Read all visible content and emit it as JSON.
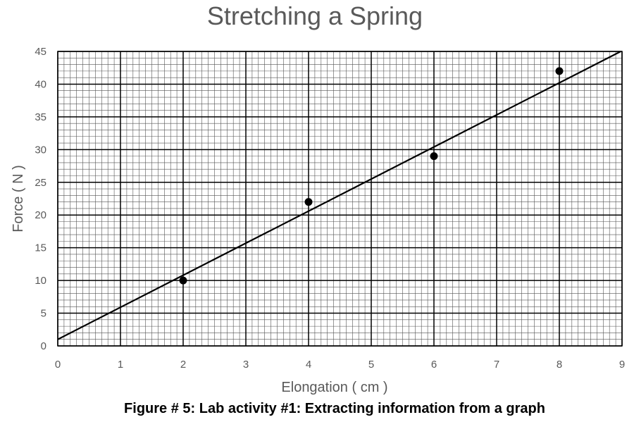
{
  "chart_data": {
    "type": "scatter",
    "title": "Stretching a Spring",
    "xlabel": "Elongation ( cm )",
    "ylabel": "Force ( N )",
    "xlim": [
      0,
      9
    ],
    "ylim": [
      0,
      45
    ],
    "x_ticks": [
      0,
      1,
      2,
      3,
      4,
      5,
      6,
      7,
      8,
      9
    ],
    "y_ticks": [
      0,
      5,
      10,
      15,
      20,
      25,
      30,
      35,
      40,
      45
    ],
    "grid": true,
    "series": [
      {
        "points": [
          {
            "x": 2,
            "y": 10
          },
          {
            "x": 4,
            "y": 22
          },
          {
            "x": 6,
            "y": 29
          },
          {
            "x": 8,
            "y": 42
          }
        ]
      }
    ],
    "trendline": {
      "type": "linear",
      "slope": 4.9,
      "intercept": 1
    }
  },
  "caption": "Figure # 5: Lab activity #1: Extracting information from a graph"
}
